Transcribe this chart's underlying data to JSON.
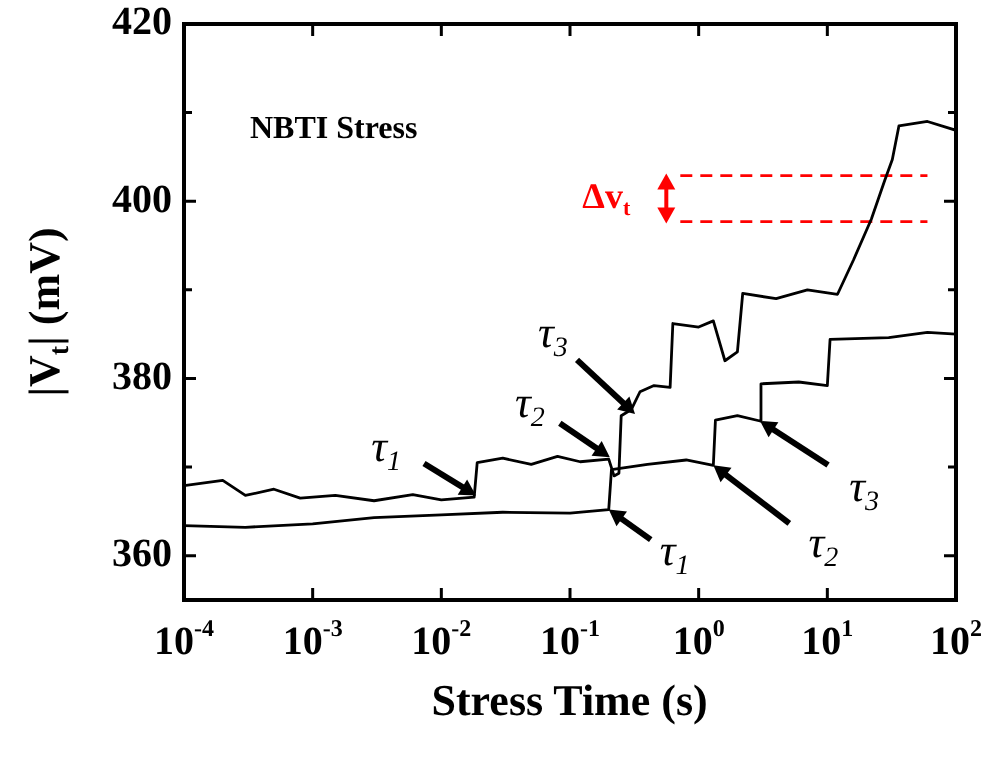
{
  "chart_data": {
    "type": "line",
    "xlabel": "Stress Time (s)",
    "ylabel": "|V$_{t}$| (mV)",
    "log": "x",
    "marker": "none",
    "grid": false,
    "xlim": [
      0.0001,
      100
    ],
    "xticks": [
      {
        "value": 0.0001,
        "label": "10$^{-4}$"
      },
      {
        "value": 0.001,
        "label": "10$^{-3}$"
      },
      {
        "value": 0.01,
        "label": "10$^{-2}$"
      },
      {
        "value": 0.1,
        "label": "10$^{-1}$"
      },
      {
        "value": 1,
        "label": "10$^{0}$"
      },
      {
        "value": 10,
        "label": "10$^{1}$"
      },
      {
        "value": 100,
        "label": "10$^{2}$"
      }
    ],
    "ylim": [
      355,
      420
    ],
    "yticks": [
      360,
      {
        "value": 370,
        "label": null
      },
      380,
      {
        "value": 390,
        "label": null
      },
      400,
      {
        "value": 410,
        "label": null
      },
      420
    ],
    "series": [
      {
        "type": "line",
        "color": "#000000",
        "x": [
          0.0001,
          0.0002,
          0.0003,
          0.0005,
          0.0008,
          0.0015,
          0.003,
          0.006,
          0.01,
          0.018,
          0.019,
          0.03,
          0.05,
          0.08,
          0.12,
          0.2,
          0.22,
          0.24,
          0.25,
          0.3,
          0.35,
          0.45,
          0.6,
          0.63,
          1,
          1.3,
          1.6,
          2,
          2.2,
          4,
          7,
          12,
          16,
          22,
          28,
          32,
          36,
          60,
          100
        ],
        "values": [
          367.9,
          368.5,
          366.8,
          367.5,
          366.5,
          366.8,
          366.2,
          366.9,
          366.3,
          366.6,
          370.5,
          371,
          370.3,
          371.2,
          370.6,
          370.9,
          369,
          369.3,
          375.8,
          376.5,
          378.5,
          379.2,
          379,
          386.2,
          385.8,
          386.5,
          382,
          383,
          389.6,
          389,
          390,
          389.5,
          393.4,
          398,
          402.4,
          404.7,
          408.5,
          409,
          408
        ]
      },
      {
        "type": "line",
        "color": "#000000",
        "x": [
          0.0001,
          0.0003,
          0.001,
          0.003,
          0.01,
          0.03,
          0.1,
          0.2,
          0.21,
          0.4,
          0.8,
          1.3,
          1.35,
          2,
          3,
          3.05,
          6,
          10,
          10.5,
          30,
          60,
          100
        ],
        "values": [
          363.4,
          363.2,
          363.6,
          364.3,
          364.6,
          364.9,
          364.8,
          365.2,
          369.7,
          370.3,
          370.8,
          370.2,
          375.3,
          375.8,
          375.2,
          379.4,
          379.6,
          379.2,
          384.4,
          384.6,
          385.2,
          385
        ]
      },
      {
        "type": "line",
        "color": "#ff0000",
        "line_style": "dashed",
        "x": [
          0.72,
          60
        ],
        "values": [
          402.9,
          402.9
        ]
      },
      {
        "type": "line",
        "color": "#ff0000",
        "line_style": "dashed",
        "x": [
          0.72,
          60
        ],
        "values": [
          397.7,
          397.7
        ]
      }
    ],
    "annotations": [
      "NBTI Stress",
      "Δv$_{t}$",
      {
        "text": "τ$_{1}$",
        "x": 0.0186,
        "y": 366.8
      },
      {
        "text": "τ$_{2}$",
        "x": 0.204,
        "y": 371.1
      },
      {
        "text": "τ$_{3}$",
        "x": 0.32,
        "y": 376
      },
      {
        "text": "τ$_{1}$",
        "x": 0.2,
        "y": 365.2
      },
      {
        "text": "τ$_{2}$",
        "x": 1.3,
        "y": 370.2
      },
      {
        "text": "τ$_{3}$",
        "x": 3,
        "y": 375.2
      }
    ]
  }
}
